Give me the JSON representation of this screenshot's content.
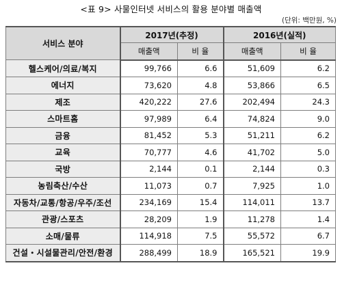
{
  "title": "<표 9> 사물인터넷 서비스의 활용 분야별 매출액",
  "unit": "(단위: 백만원, %)",
  "headers": {
    "service_field": "서비스 분야",
    "year_2017": "2017년(추정)",
    "year_2016": "2016년(실적)",
    "revenue_2017": "매출액",
    "ratio_2017": "비 율",
    "revenue_2016": "매출액",
    "ratio_2016": "비 율"
  },
  "rows": [
    {
      "field": "헬스케어/의료/복지",
      "rev2017": "99,766",
      "ratio2017": "6.6",
      "rev2016": "51,609",
      "ratio2016": "6.2"
    },
    {
      "field": "에너지",
      "rev2017": "73,620",
      "ratio2017": "4.8",
      "rev2016": "53,866",
      "ratio2016": "6.5"
    },
    {
      "field": "제조",
      "rev2017": "420,222",
      "ratio2017": "27.6",
      "rev2016": "202,494",
      "ratio2016": "24.3"
    },
    {
      "field": "스마트홈",
      "rev2017": "97,989",
      "ratio2017": "6.4",
      "rev2016": "74,824",
      "ratio2016": "9.0"
    },
    {
      "field": "금융",
      "rev2017": "81,452",
      "ratio2017": "5.3",
      "rev2016": "51,211",
      "ratio2016": "6.2"
    },
    {
      "field": "교육",
      "rev2017": "70,777",
      "ratio2017": "4.6",
      "rev2016": "41,702",
      "ratio2016": "5.0"
    },
    {
      "field": "국방",
      "rev2017": "2,144",
      "ratio2017": "0.1",
      "rev2016": "2,144",
      "ratio2016": "0.3"
    },
    {
      "field": "농림축산/수산",
      "rev2017": "11,073",
      "ratio2017": "0.7",
      "rev2016": "7,925",
      "ratio2016": "1.0"
    },
    {
      "field": "자동차/교통/항공/우주/조선",
      "rev2017": "234,169",
      "ratio2017": "15.4",
      "rev2016": "114,011",
      "ratio2016": "13.7"
    },
    {
      "field": "관광/스포츠",
      "rev2017": "28,209",
      "ratio2017": "1.9",
      "rev2016": "11,278",
      "ratio2016": "1.4"
    },
    {
      "field": "소매/물류",
      "rev2017": "114,918",
      "ratio2017": "7.5",
      "rev2016": "55,572",
      "ratio2016": "6.7"
    },
    {
      "field": "건설・시설물관리/안전/환경",
      "rev2017": "288,499",
      "ratio2017": "18.9",
      "rev2016": "165,521",
      "ratio2016": "19.9"
    }
  ]
}
